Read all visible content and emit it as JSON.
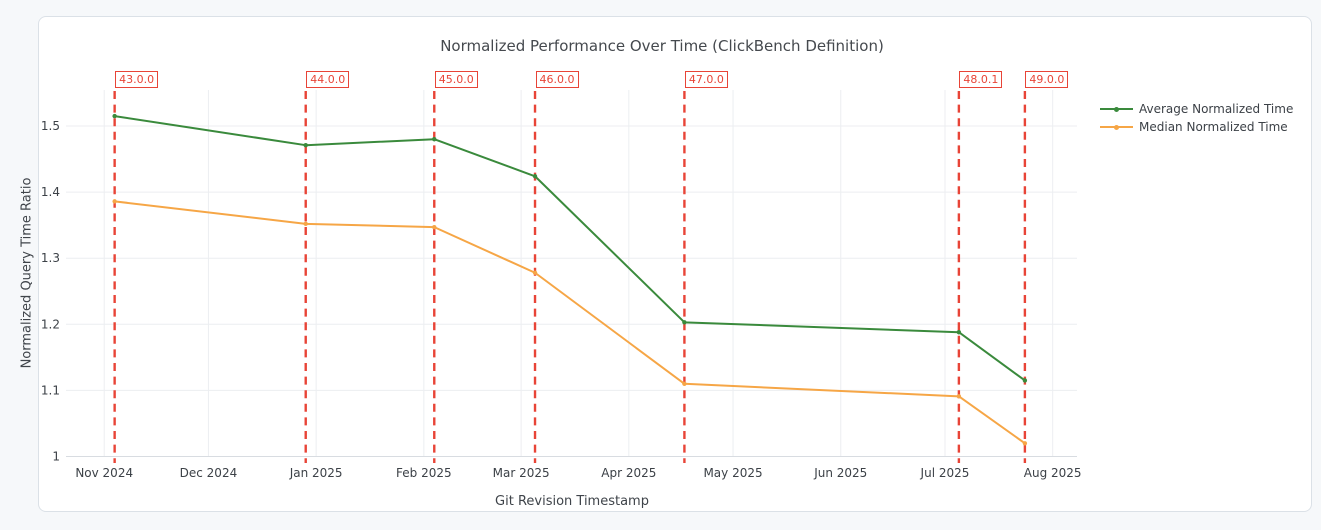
{
  "chart_data": {
    "type": "line",
    "title": "Normalized Performance Over Time (ClickBench Definition)",
    "xlabel": "Git Revision Timestamp",
    "ylabel": "Normalized Query Time Ratio",
    "x_domain": [
      "2024-10-21",
      "2025-08-08"
    ],
    "ylim": [
      1,
      1.5545
    ],
    "grid": true,
    "legend_position": "outside-top-right",
    "x_ticks": [
      {
        "label": "Nov 2024",
        "date": "2024-11-01"
      },
      {
        "label": "Dec 2024",
        "date": "2024-12-01"
      },
      {
        "label": "Jan 2025",
        "date": "2025-01-01"
      },
      {
        "label": "Feb 2025",
        "date": "2025-02-01"
      },
      {
        "label": "Mar 2025",
        "date": "2025-03-01"
      },
      {
        "label": "Apr 2025",
        "date": "2025-04-01"
      },
      {
        "label": "May 2025",
        "date": "2025-05-01"
      },
      {
        "label": "Jun 2025",
        "date": "2025-06-01"
      },
      {
        "label": "Jul 2025",
        "date": "2025-07-01"
      },
      {
        "label": "Aug 2025",
        "date": "2025-08-01"
      }
    ],
    "y_ticks": [
      {
        "label": "1",
        "value": 1.0
      },
      {
        "label": "1.1",
        "value": 1.1
      },
      {
        "label": "1.2",
        "value": 1.2
      },
      {
        "label": "1.3",
        "value": 1.3
      },
      {
        "label": "1.4",
        "value": 1.4
      },
      {
        "label": "1.5",
        "value": 1.5
      }
    ],
    "x": [
      "2024-11-04",
      "2024-12-29",
      "2025-02-04",
      "2025-03-05",
      "2025-04-17",
      "2025-07-05",
      "2025-07-24"
    ],
    "series": [
      {
        "name": "Average Normalized Time",
        "color": "#3a8a3c",
        "values": [
          1.515,
          1.471,
          1.48,
          1.424,
          1.203,
          1.188,
          1.115
        ]
      },
      {
        "name": "Median Normalized Time",
        "color": "#f6a646",
        "values": [
          1.386,
          1.352,
          1.347,
          1.278,
          1.11,
          1.091,
          1.02
        ]
      }
    ],
    "annotations": {
      "color": "#e84437",
      "versions": [
        {
          "label": "43.0.0",
          "date": "2024-11-04"
        },
        {
          "label": "44.0.0",
          "date": "2024-12-29"
        },
        {
          "label": "45.0.0",
          "date": "2025-02-04"
        },
        {
          "label": "46.0.0",
          "date": "2025-03-05"
        },
        {
          "label": "47.0.0",
          "date": "2025-04-17"
        },
        {
          "label": "48.0.1",
          "date": "2025-07-05"
        },
        {
          "label": "49.0.0",
          "date": "2025-07-24"
        }
      ]
    }
  }
}
